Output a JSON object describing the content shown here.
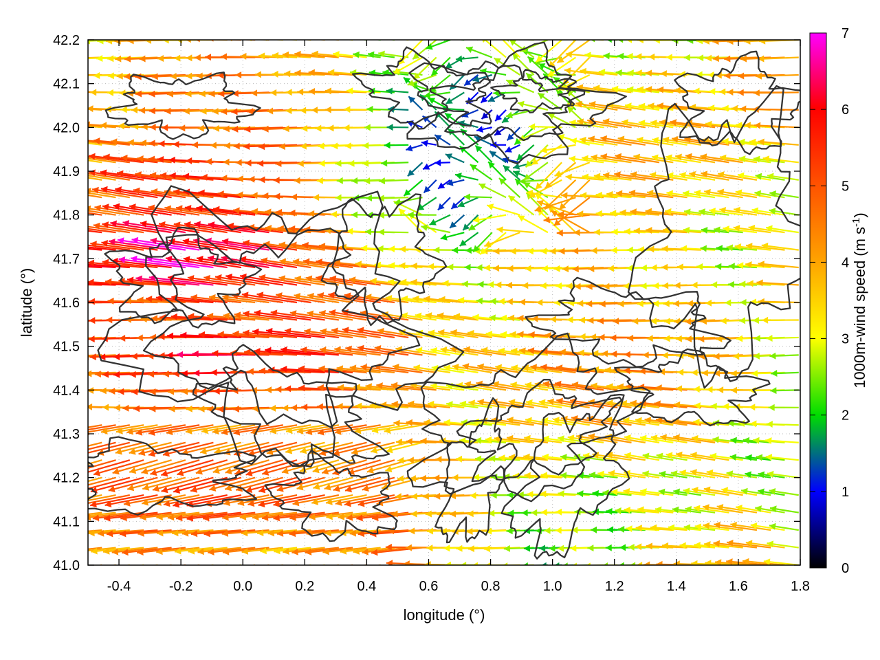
{
  "chart_data": {
    "type": "vector_field",
    "xlabel": "longitude (°)",
    "ylabel": "latitude (°)",
    "xlim": [
      -0.5,
      1.8
    ],
    "ylim": [
      41.0,
      42.2
    ],
    "xticks": [
      "-0.4",
      "-0.2",
      "0.0",
      "0.2",
      "0.4",
      "0.6",
      "0.8",
      "1.0",
      "1.2",
      "1.4",
      "1.6",
      "1.8"
    ],
    "xtick_values": [
      -0.4,
      -0.2,
      0.0,
      0.2,
      0.4,
      0.6,
      0.8,
      1.0,
      1.2,
      1.4,
      1.6,
      1.8
    ],
    "yticks": [
      "41.0",
      "41.1",
      "41.2",
      "41.3",
      "41.4",
      "41.5",
      "41.6",
      "41.7",
      "41.8",
      "41.9",
      "42.0",
      "42.1",
      "42.2"
    ],
    "ytick_values": [
      41.0,
      41.1,
      41.2,
      41.3,
      41.4,
      41.5,
      41.6,
      41.7,
      41.8,
      41.9,
      42.0,
      42.1,
      42.2
    ],
    "colorbar": {
      "label": "1000m-wind speed (m s",
      "label_sup": "-1",
      "label_end": ")",
      "range": [
        0,
        7
      ],
      "ticks": [
        "0",
        "1",
        "2",
        "3",
        "4",
        "5",
        "6",
        "7"
      ],
      "tick_values": [
        0,
        1,
        2,
        3,
        4,
        5,
        6,
        7
      ],
      "colors": [
        "#000000",
        "#0000ff",
        "#00ff00",
        "#ffff00",
        "#ffa500",
        "#ff0000",
        "#ff00ff"
      ]
    },
    "grid": "dotted",
    "field_samples_note": "",
    "wind_direction": "easterly (pointing west)",
    "speed_regions": [
      {
        "lon": [
          -0.5,
          0.3
        ],
        "lat": [
          41.6,
          41.8
        ],
        "speed": 6.8
      },
      {
        "lon": [
          -0.5,
          0.5
        ],
        "lat": [
          41.4,
          41.55
        ],
        "speed": 6.0
      },
      {
        "lon": [
          -0.5,
          0.2
        ],
        "lat": [
          41.8,
          42.0
        ],
        "speed": 5.5
      },
      {
        "lon": [
          -0.5,
          0.4
        ],
        "lat": [
          42.0,
          42.2
        ],
        "speed": 4.5
      },
      {
        "lon": [
          0.5,
          1.1
        ],
        "lat": [
          41.8,
          42.2
        ],
        "speed": 1.2
      },
      {
        "lon": [
          0.8,
          1.6
        ],
        "lat": [
          41.0,
          41.3
        ],
        "speed": 2.5
      },
      {
        "lon": [
          0.6,
          1.8
        ],
        "lat": [
          41.3,
          41.6
        ],
        "speed": 4.2
      },
      {
        "lon": [
          1.1,
          1.8
        ],
        "lat": [
          41.7,
          42.2
        ],
        "speed": 3.8
      },
      {
        "lon": [
          -0.5,
          0.6
        ],
        "lat": [
          41.0,
          41.35
        ],
        "speed": 5.0
      }
    ]
  }
}
